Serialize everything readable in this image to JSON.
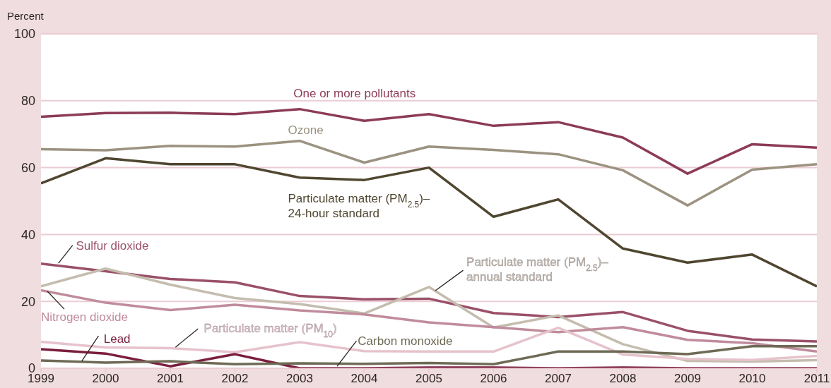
{
  "chart_data": {
    "type": "line",
    "ylabel": "Percent",
    "x": [
      1999,
      2000,
      2001,
      2002,
      2003,
      2004,
      2005,
      2006,
      2007,
      2008,
      2009,
      2010,
      2011
    ],
    "xlim": [
      1999,
      2011
    ],
    "xticks": [
      1999,
      2000,
      2001,
      2002,
      2003,
      2004,
      2005,
      2006,
      2007,
      2008,
      2009,
      2010,
      2011
    ],
    "ylim": [
      0,
      100
    ],
    "yticks": [
      0,
      20,
      40,
      60,
      80,
      100
    ],
    "grid": "y",
    "legend": false,
    "marker": "none",
    "line_style": "solid",
    "series": [
      {
        "name": "One or more pollutants",
        "color": "#8c3b57",
        "values": [
          75.2,
          76.3,
          76.4,
          76,
          77.5,
          74,
          76,
          72.5,
          73.6,
          69,
          58.2,
          67,
          66
        ]
      },
      {
        "name": "Ozone",
        "color": "#9b9280",
        "values": [
          65.5,
          65.2,
          66.5,
          66.3,
          68,
          61.5,
          66.3,
          65.3,
          64,
          59.2,
          48.7,
          59.4,
          61
        ]
      },
      {
        "name": "Particulate matter (PM$_{2.5}$)–\n24-hour standard",
        "color": "#4f4630",
        "values": [
          55.3,
          62.8,
          61,
          61,
          57,
          56.3,
          60,
          45.3,
          50.5,
          35.8,
          31.6,
          34,
          24.5
        ]
      },
      {
        "name": "Sulfur dioxide",
        "color": "#9a5068",
        "values": [
          31.3,
          29,
          26.7,
          25.7,
          21.6,
          20.6,
          20.8,
          16.5,
          15.3,
          16.8,
          11.2,
          8.6,
          8
        ]
      },
      {
        "name": "Particulate matter (PM$_{2.5}$)–\nannual standard",
        "color": "#c4bdae",
        "values": [
          24.5,
          29.8,
          25,
          21,
          19.2,
          16.4,
          24.3,
          12.2,
          15.8,
          7.2,
          2.2,
          2,
          2.4
        ]
      },
      {
        "name": "Nitrogen dioxide",
        "color": "#c08c9c",
        "values": [
          23.3,
          19.6,
          17.4,
          19,
          17.3,
          16.1,
          13.7,
          12.3,
          10.8,
          12.3,
          8.5,
          7.5,
          5
        ]
      },
      {
        "name": "Particulate matter (PM$_{10}$)",
        "color": "#e6c3cc",
        "values": [
          7.9,
          6.2,
          6,
          4.8,
          7.8,
          5.1,
          5,
          5,
          12.1,
          4.1,
          2.8,
          2.5,
          3.7
        ]
      },
      {
        "name": "Lead",
        "color": "#7a1e3e",
        "values": [
          5.7,
          4.4,
          0.6,
          4.2,
          0,
          0,
          0.2,
          0.2,
          0,
          0.2,
          0,
          0,
          0
        ]
      },
      {
        "name": "Carbon monoxide",
        "color": "#6e6a55",
        "values": [
          2.3,
          1.7,
          2.1,
          1.2,
          1.5,
          1.3,
          1.6,
          1.2,
          5,
          5,
          4.2,
          6.6,
          6.6
        ]
      }
    ]
  }
}
